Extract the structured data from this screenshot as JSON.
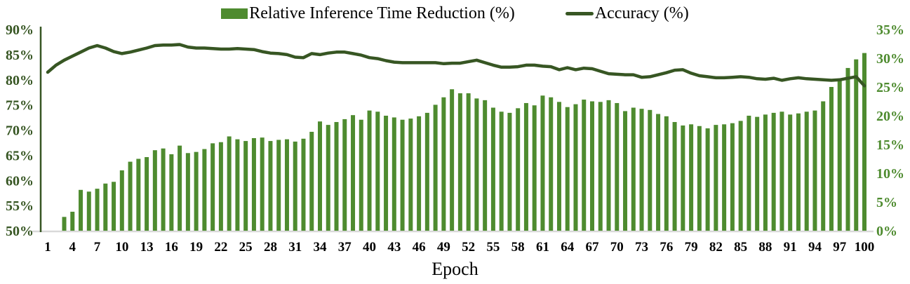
{
  "chart_data": {
    "type": "bar+line combo",
    "title": "",
    "xlabel": "Epoch",
    "grid": false,
    "legend_position": "top-center",
    "x_tick_labels": [
      "1",
      "4",
      "7",
      "10",
      "13",
      "16",
      "19",
      "22",
      "25",
      "28",
      "31",
      "34",
      "37",
      "40",
      "43",
      "46",
      "49",
      "52",
      "55",
      "58",
      "61",
      "64",
      "67",
      "70",
      "73",
      "76",
      "79",
      "82",
      "85",
      "88",
      "91",
      "94",
      "97",
      "100"
    ],
    "left_axis": {
      "title": "",
      "min": 50,
      "max": 90,
      "step": 5,
      "tick_labels": [
        "50%",
        "55%",
        "60%",
        "65%",
        "70%",
        "75%",
        "80%",
        "85%",
        "90%"
      ],
      "color": "#375623"
    },
    "right_axis": {
      "title": "",
      "min": 0,
      "max": 35,
      "step": 5,
      "tick_labels": [
        "0%",
        "5%",
        "10%",
        "15%",
        "20%",
        "25%",
        "30%",
        "35%"
      ],
      "color": "#4e8b2f"
    },
    "x": [
      1,
      2,
      3,
      4,
      5,
      6,
      7,
      8,
      9,
      10,
      11,
      12,
      13,
      14,
      15,
      16,
      17,
      18,
      19,
      20,
      21,
      22,
      23,
      24,
      25,
      26,
      27,
      28,
      29,
      30,
      31,
      32,
      33,
      34,
      35,
      36,
      37,
      38,
      39,
      40,
      41,
      42,
      43,
      44,
      45,
      46,
      47,
      48,
      49,
      50,
      51,
      52,
      53,
      54,
      55,
      56,
      57,
      58,
      59,
      60,
      61,
      62,
      63,
      64,
      65,
      66,
      67,
      68,
      69,
      70,
      71,
      72,
      73,
      74,
      75,
      76,
      77,
      78,
      79,
      80,
      81,
      82,
      83,
      84,
      85,
      86,
      87,
      88,
      89,
      90,
      91,
      92,
      93,
      94,
      95,
      96,
      97,
      98,
      99,
      100
    ],
    "series": [
      {
        "name": "Relative Inference Time Reduction (%)",
        "type": "bar",
        "axis": "right",
        "color": "#4e8b2f",
        "values": [
          0,
          0,
          2.4,
          3.3,
          7.1,
          6.8,
          7.3,
          8.2,
          8.5,
          10.5,
          12.0,
          12.5,
          12.8,
          14.0,
          14.3,
          13.3,
          14.8,
          13.5,
          13.7,
          14.2,
          15.2,
          15.4,
          16.4,
          15.9,
          15.6,
          16.1,
          16.2,
          15.6,
          15.8,
          15.9,
          15.5,
          16.0,
          17.2,
          19.0,
          18.4,
          18.9,
          19.4,
          20.1,
          19.3,
          20.9,
          20.7,
          20.0,
          19.7,
          19.3,
          19.5,
          19.9,
          20.5,
          21.9,
          23.2,
          24.6,
          23.9,
          23.9,
          23.0,
          22.7,
          21.4,
          20.7,
          20.5,
          21.3,
          22.2,
          21.8,
          23.5,
          23.2,
          22.4,
          21.5,
          22.0,
          22.8,
          22.5,
          22.4,
          22.7,
          22.2,
          20.8,
          21.4,
          21.2,
          21.0,
          20.3,
          19.9,
          18.9,
          18.3,
          18.5,
          18.2,
          17.8,
          18.4,
          18.5,
          18.7,
          19.1,
          20.0,
          19.8,
          20.2,
          20.5,
          20.7,
          20.2,
          20.4,
          20.7,
          20.9,
          22.5,
          25.0,
          26.1,
          28.3,
          29.8,
          30.9
        ]
      },
      {
        "name": "Accuracy (%)",
        "type": "line",
        "axis": "left",
        "color": "#375623",
        "values": [
          81.5,
          82.9,
          83.9,
          84.7,
          85.5,
          86.3,
          86.8,
          86.3,
          85.6,
          85.2,
          85.5,
          85.9,
          86.3,
          86.8,
          86.9,
          86.9,
          87.0,
          86.5,
          86.3,
          86.3,
          86.2,
          86.1,
          86.1,
          86.2,
          86.1,
          86.0,
          85.6,
          85.3,
          85.2,
          85.0,
          84.5,
          84.4,
          85.2,
          85.0,
          85.3,
          85.5,
          85.5,
          85.2,
          84.9,
          84.4,
          84.2,
          83.8,
          83.5,
          83.4,
          83.4,
          83.4,
          83.4,
          83.4,
          83.2,
          83.3,
          83.3,
          83.6,
          83.9,
          83.4,
          82.9,
          82.5,
          82.5,
          82.6,
          82.9,
          82.9,
          82.7,
          82.6,
          82.0,
          82.4,
          82.0,
          82.3,
          82.2,
          81.7,
          81.2,
          81.1,
          81.0,
          81.0,
          80.5,
          80.6,
          81.0,
          81.4,
          81.9,
          82.0,
          81.3,
          80.8,
          80.6,
          80.4,
          80.4,
          80.5,
          80.6,
          80.5,
          80.2,
          80.1,
          80.3,
          79.9,
          80.2,
          80.4,
          80.2,
          80.1,
          80.0,
          79.9,
          80.0,
          80.3,
          80.6,
          78.8
        ]
      }
    ],
    "baseline_color": "#d9d9d9",
    "x_tick_color": "#000000"
  }
}
